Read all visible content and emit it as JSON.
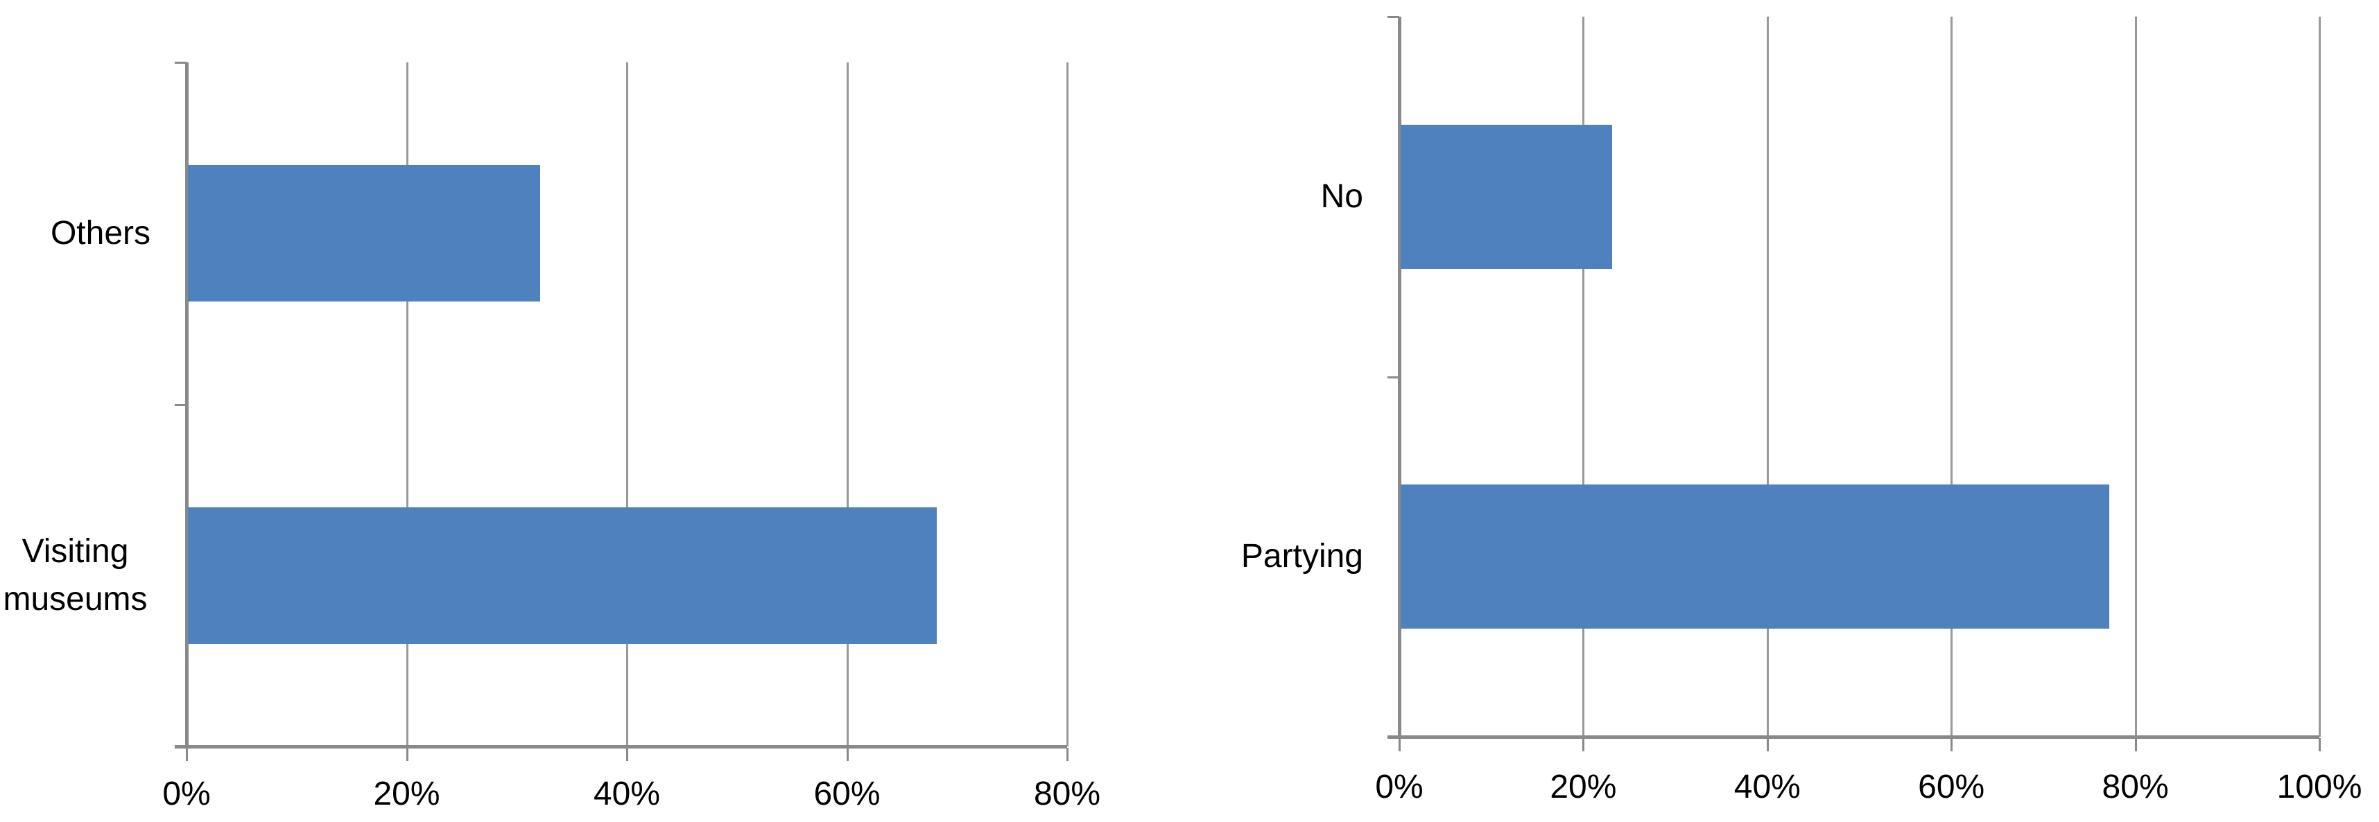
{
  "page": {
    "background": "#ffffff",
    "description_left_chart": "horizontal bar chart",
    "description_right_chart": "horizontal bar chart"
  },
  "chart_data": [
    {
      "type": "bar",
      "orientation": "horizontal",
      "title": "",
      "xlabel": "",
      "ylabel": "",
      "categories": [
        "Others",
        "Visiting museums"
      ],
      "values": [
        32,
        68
      ],
      "value_unit": "%",
      "xlim": [
        0,
        80
      ],
      "x_ticks": [
        "0%",
        "20%",
        "40%",
        "60%",
        "80%"
      ],
      "grid": true,
      "legend": false,
      "bar_color": "#4E81BD",
      "gridline_color": "#999999",
      "axis_color": "#898989",
      "text_color": "#000000"
    },
    {
      "type": "bar",
      "orientation": "horizontal",
      "title": "",
      "xlabel": "",
      "ylabel": "",
      "categories": [
        "No",
        "Partying"
      ],
      "values": [
        23,
        77
      ],
      "value_unit": "%",
      "xlim": [
        0,
        100
      ],
      "x_ticks": [
        "0%",
        "20%",
        "40%",
        "60%",
        "80%",
        "100%"
      ],
      "grid": true,
      "legend": false,
      "bar_color": "#4E81BD",
      "gridline_color": "#999999",
      "axis_color": "#898989",
      "text_color": "#000000"
    }
  ]
}
